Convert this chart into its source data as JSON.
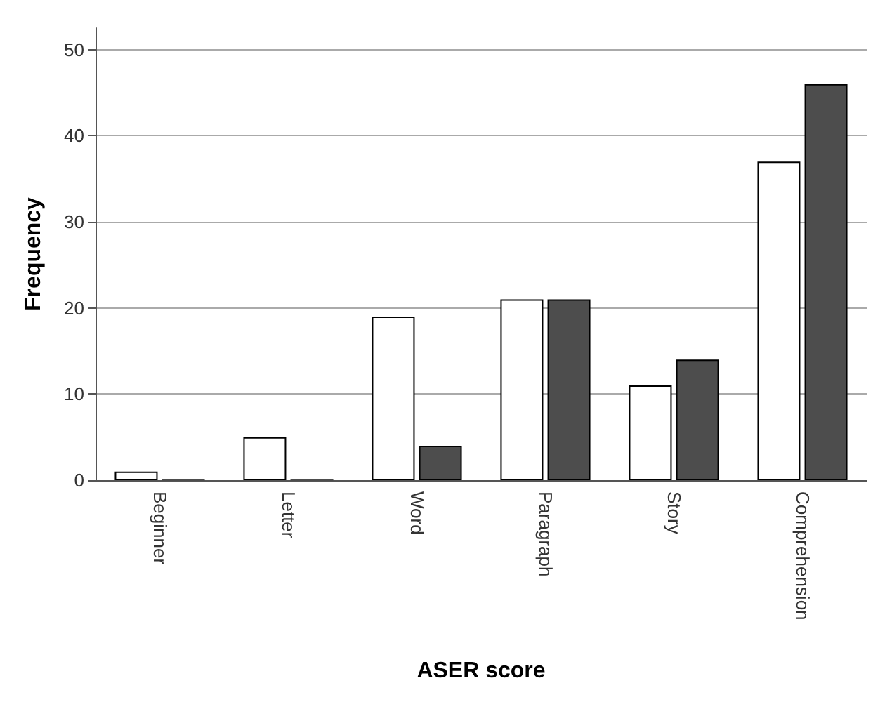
{
  "chart_data": {
    "type": "bar",
    "xlabel": "ASER score",
    "ylabel": "Frequency",
    "categories": [
      "Beginner",
      "Letter",
      "Word",
      "Paragraph",
      "Story",
      "Comprehension"
    ],
    "series": [
      {
        "color": "#ffffff",
        "values": [
          1,
          5,
          19,
          21,
          11,
          37
        ]
      },
      {
        "color": "#4d4d4d",
        "values": [
          0,
          0,
          4,
          21,
          14,
          46
        ]
      }
    ],
    "ylim": [
      0,
      52.5
    ],
    "yticks": [
      0,
      10,
      20,
      30,
      40,
      50
    ],
    "grid": "y"
  }
}
